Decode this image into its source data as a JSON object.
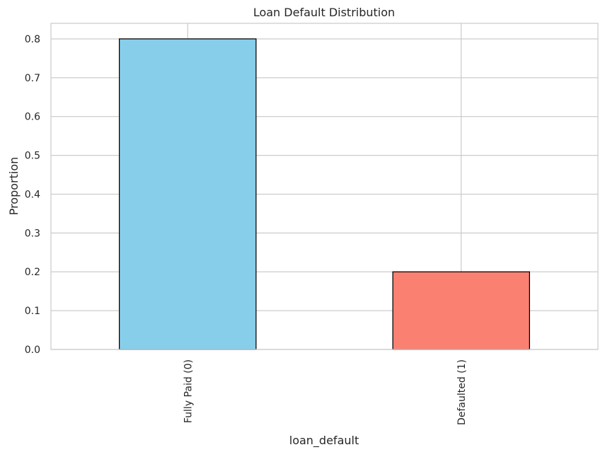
{
  "chart_data": {
    "type": "bar",
    "title": "Loan Default Distribution",
    "xlabel": "loan_default",
    "ylabel": "Proportion",
    "categories": [
      "Fully Paid (0)",
      "Defaulted (1)"
    ],
    "values": [
      0.8,
      0.2
    ],
    "colors": [
      "#87CEEB",
      "#FA8072"
    ],
    "edge_color": "#000000",
    "ylim": [
      0,
      0.84
    ],
    "yticks": [
      "0.0",
      "0.1",
      "0.2",
      "0.3",
      "0.4",
      "0.5",
      "0.6",
      "0.7",
      "0.8"
    ],
    "grid": true,
    "grid_color": "#CCCCCC",
    "background": "#FFFFFF"
  }
}
